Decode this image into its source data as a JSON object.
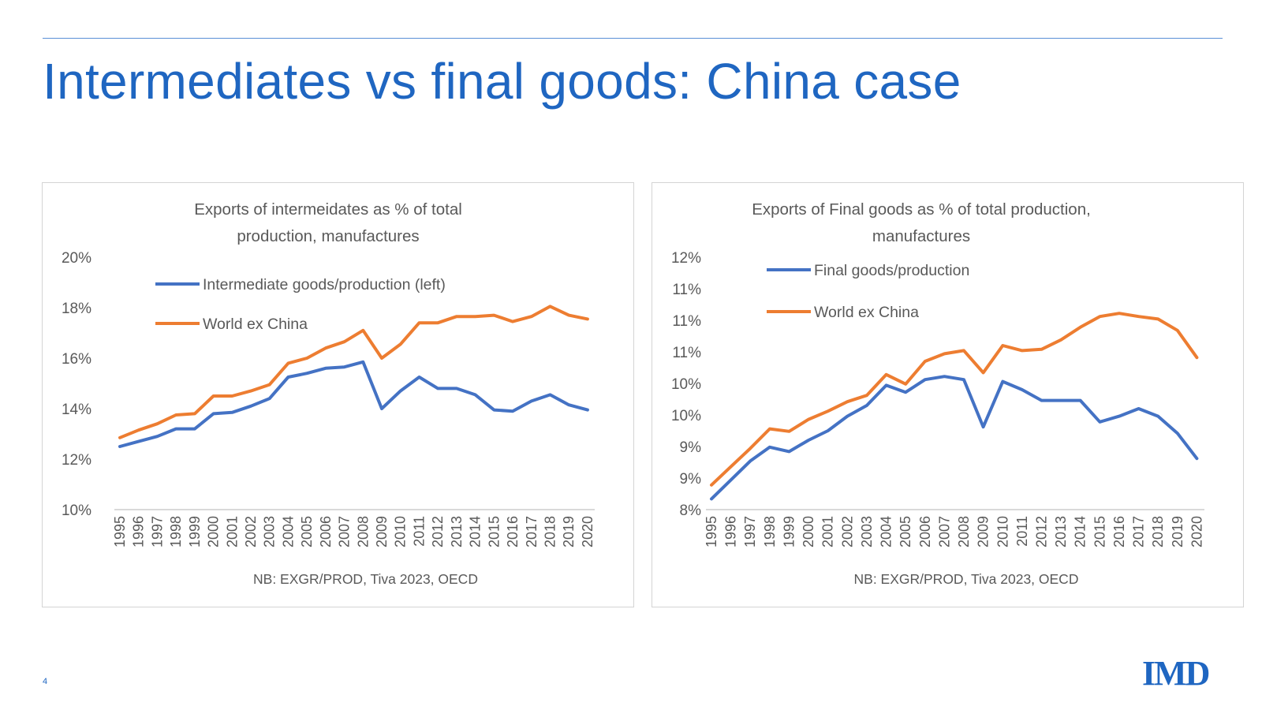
{
  "slide": {
    "title": "Intermediates vs final goods: China case",
    "page_number": "4",
    "logo_text": "IMD"
  },
  "colors": {
    "title": "#1f66c1",
    "china_series": "#4472c4",
    "world_series": "#ed7d31",
    "text": "#595959",
    "axis": "#d9d9d9"
  },
  "chart_data": [
    {
      "type": "line",
      "title": [
        "Exports of intermeidates as % of total",
        "production, manufactures"
      ],
      "note": "NB: EXGR/PROD, Tiva 2023, OECD",
      "x": [
        "1995",
        "1996",
        "1997",
        "1998",
        "1999",
        "2000",
        "2001",
        "2002",
        "2003",
        "2004",
        "2005",
        "2006",
        "2007",
        "2008",
        "2009",
        "2010",
        "2011",
        "2012",
        "2013",
        "2014",
        "2015",
        "2016",
        "2017",
        "2018",
        "2019",
        "2020"
      ],
      "yticks": [
        10,
        12,
        14,
        16,
        18,
        20
      ],
      "ytick_labels": [
        "10%",
        "12%",
        "14%",
        "16%",
        "18%",
        "20%"
      ],
      "ylim": [
        10,
        20
      ],
      "grid": false,
      "legend_position": "top-left",
      "series": [
        {
          "name": "Intermediate goods/production (left)",
          "color": "#4472c4",
          "values": [
            12.5,
            12.7,
            12.9,
            13.2,
            13.2,
            13.8,
            13.85,
            14.1,
            14.4,
            15.25,
            15.4,
            15.6,
            15.65,
            15.85,
            14.0,
            14.7,
            15.25,
            14.8,
            14.8,
            14.55,
            13.95,
            13.9,
            14.3,
            14.55,
            14.15,
            13.95
          ]
        },
        {
          "name": "World ex China",
          "color": "#ed7d31",
          "values": [
            12.85,
            13.15,
            13.4,
            13.75,
            13.8,
            14.5,
            14.5,
            14.7,
            14.95,
            15.8,
            16.0,
            16.4,
            16.65,
            17.1,
            16.0,
            16.55,
            17.4,
            17.4,
            17.65,
            17.65,
            17.7,
            17.45,
            17.65,
            18.05,
            17.7,
            17.55
          ]
        }
      ]
    },
    {
      "type": "line",
      "title": [
        "Exports of Final goods as % of total production,",
        "manufactures"
      ],
      "note": "NB: EXGR/PROD, Tiva 2023, OECD",
      "x": [
        "1995",
        "1996",
        "1997",
        "1998",
        "1999",
        "2000",
        "2001",
        "2002",
        "2003",
        "2004",
        "2005",
        "2006",
        "2007",
        "2008",
        "2009",
        "2010",
        "2011",
        "2012",
        "2013",
        "2014",
        "2015",
        "2016",
        "2017",
        "2018",
        "2019",
        "2020"
      ],
      "yticks": [
        8,
        8.5,
        9,
        9.5,
        10,
        10.5,
        11,
        11.5,
        12
      ],
      "ytick_labels": [
        "8%",
        "9%",
        "9%",
        "10%",
        "10%",
        "11%",
        "11%",
        "11%",
        "12%"
      ],
      "ylim": [
        8,
        12
      ],
      "grid": false,
      "legend_position": "top-left",
      "series": [
        {
          "name": "Final goods/production",
          "color": "#4472c4",
          "values": [
            8.17,
            8.47,
            8.77,
            8.99,
            8.92,
            9.1,
            9.25,
            9.48,
            9.65,
            9.97,
            9.86,
            10.06,
            10.11,
            10.06,
            9.31,
            10.03,
            9.9,
            9.73,
            9.73,
            9.73,
            9.39,
            9.48,
            9.6,
            9.48,
            9.21,
            8.81
          ]
        },
        {
          "name": "World ex China",
          "color": "#ed7d31",
          "values": [
            8.39,
            8.68,
            8.97,
            9.28,
            9.24,
            9.43,
            9.56,
            9.71,
            9.81,
            10.14,
            9.99,
            10.35,
            10.47,
            10.52,
            10.17,
            10.6,
            10.52,
            10.54,
            10.69,
            10.89,
            11.06,
            11.11,
            11.06,
            11.02,
            10.84,
            10.41
          ]
        }
      ]
    }
  ]
}
